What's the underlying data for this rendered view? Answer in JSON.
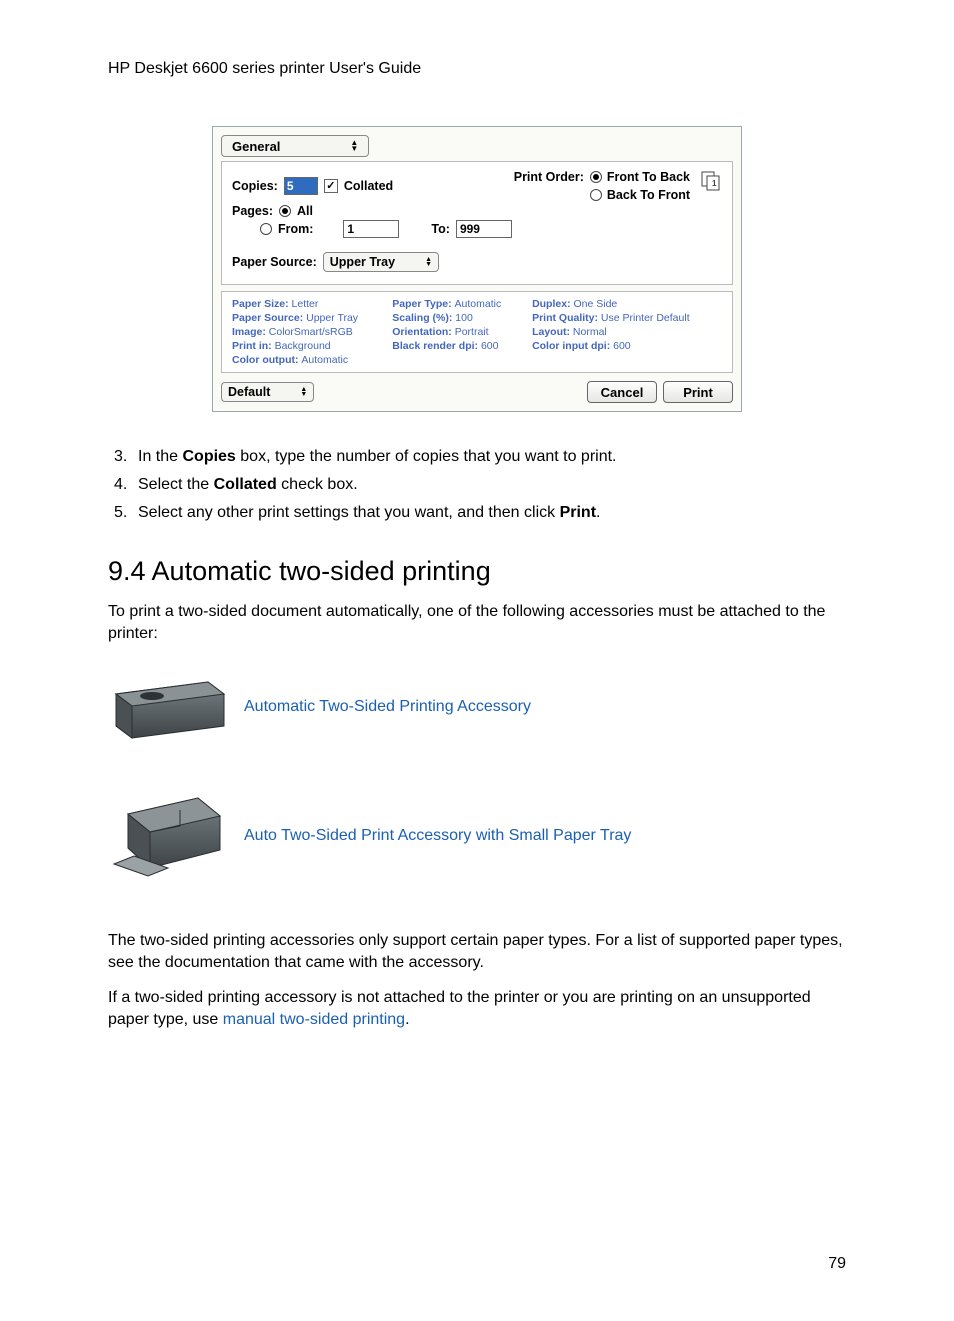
{
  "header": "HP Deskjet 6600 series printer User's Guide",
  "dialog": {
    "tab": "General",
    "copies_label": "Copies:",
    "copies_value": "5",
    "collated_label": "Collated",
    "print_order_label": "Print Order:",
    "print_order_opts": [
      "Front To Back",
      "Back To Front"
    ],
    "pages_label": "Pages:",
    "pages_all": "All",
    "pages_from": "From:",
    "from_val": "1",
    "to_label": "To:",
    "to_val": "999",
    "paper_source_label": "Paper Source:",
    "paper_source_val": "Upper Tray",
    "summary": [
      [
        "Paper Size:",
        "Letter",
        "Paper Type:",
        "Automatic",
        "Duplex:",
        "One Side"
      ],
      [
        "Paper Source:",
        "Upper Tray",
        "Scaling (%):",
        "100",
        "Print Quality:",
        "Use Printer Default"
      ],
      [
        "Image:",
        "ColorSmart/sRGB",
        "Orientation:",
        "Portrait",
        "Layout:",
        "Normal"
      ],
      [
        "Print in:",
        "Background",
        "Black render dpi:",
        "600",
        "Color input dpi:",
        "600"
      ],
      [
        "Color output:",
        "Automatic",
        "",
        "",
        "",
        ""
      ]
    ],
    "default_btn": "Default",
    "cancel_btn": "Cancel",
    "print_btn": "Print"
  },
  "steps": [
    {
      "n": "3.",
      "pre": "In the ",
      "b": "Copies",
      "post": " box, type the number of copies that you want to print."
    },
    {
      "n": "4.",
      "pre": "Select the ",
      "b": "Collated",
      "post": " check box."
    },
    {
      "n": "5.",
      "pre": "Select any other print settings that you want, and then click ",
      "b": "Print",
      "post": "."
    }
  ],
  "section": {
    "title": "9.4  Automatic two-sided printing",
    "intro": "To print a two-sided document automatically, one of the following accessories must be attached to the printer:",
    "acc1": "Automatic Two-Sided Printing Accessory",
    "acc2": "Auto Two-Sided Print Accessory with Small Paper Tray",
    "para2": "The two-sided printing accessories only support certain paper types. For a list of supported paper types, see the documentation that came with the accessory.",
    "para3_pre": "If a two-sided printing accessory is not attached to the printer or you are printing on an unsupported paper type, use ",
    "para3_link": "manual two-sided printing",
    "para3_post": "."
  },
  "page_number": "79",
  "colors": {
    "link": "#1a5fb4",
    "summary_text": "#4466bb"
  }
}
